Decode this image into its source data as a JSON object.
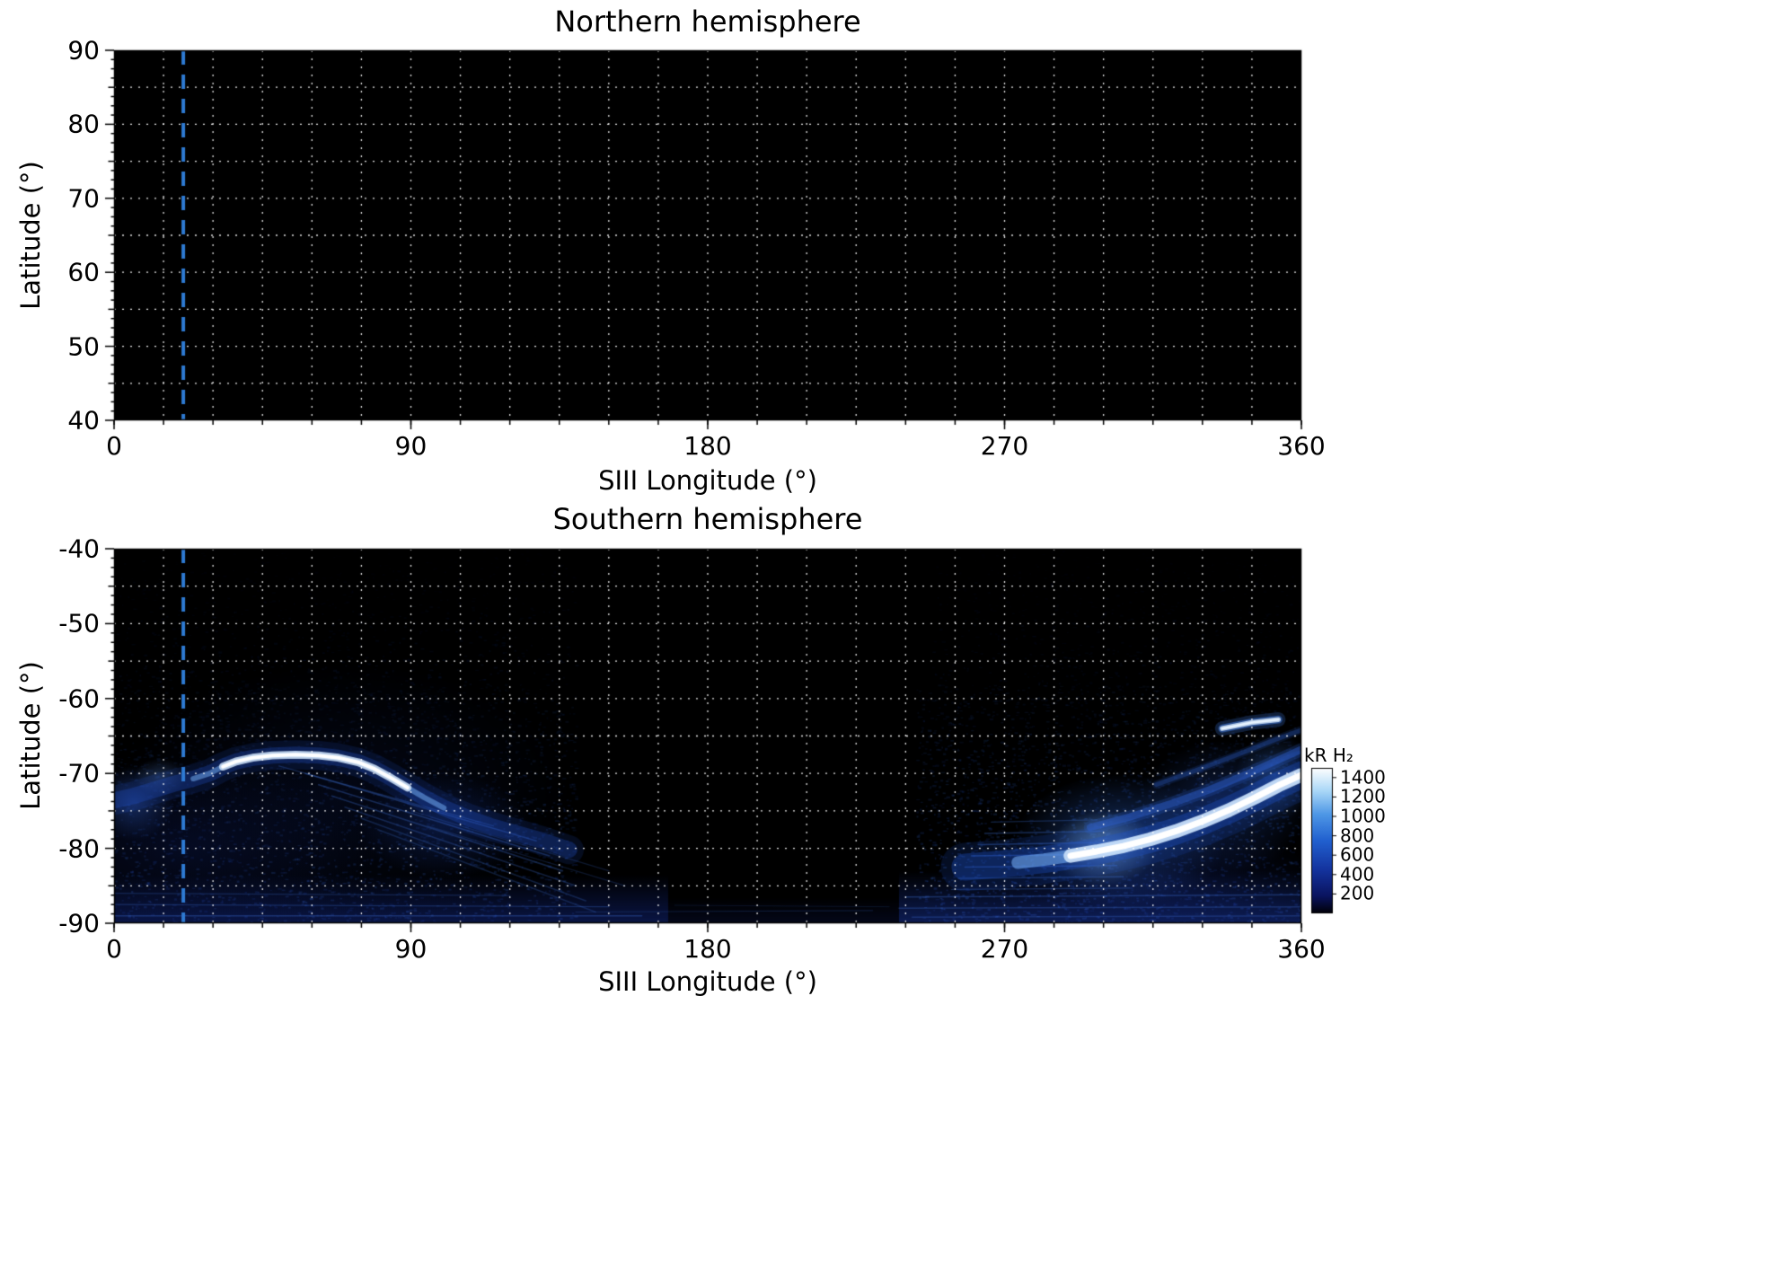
{
  "colorbar": {
    "label": "kR H₂",
    "ticks": [
      1400,
      1200,
      1000,
      800,
      600,
      400,
      200
    ],
    "range": [
      0,
      1500
    ],
    "colormap": [
      [
        0,
        "#000006"
      ],
      [
        0.12,
        "#0a1460"
      ],
      [
        0.3,
        "#14339e"
      ],
      [
        0.5,
        "#2160cf"
      ],
      [
        0.68,
        "#4e97e6"
      ],
      [
        0.84,
        "#a9d7f7"
      ],
      [
        1,
        "#ffffff"
      ]
    ]
  },
  "chart_data": [
    {
      "type": "heatmap",
      "title": "Northern hemisphere",
      "xlabel": "SIII Longitude (°)",
      "ylabel": "Latitude (°)",
      "xlim": [
        0,
        360
      ],
      "ylim": [
        40,
        90
      ],
      "xticks": [
        0,
        90,
        180,
        270,
        360
      ],
      "yticks": [
        90,
        80,
        70,
        60,
        50,
        40
      ],
      "grid": {
        "lon_step": 15,
        "lat_step": 5,
        "style": "white dotted"
      },
      "background": "#000000",
      "reference_line": {
        "lon": 21,
        "color": "#2e7ad2",
        "style": "dashed"
      },
      "emission_summary": "No auroral emission visible; entire map at minimum of color scale (black)"
    },
    {
      "type": "heatmap",
      "title": "Southern hemisphere",
      "xlabel": "SIII Longitude (°)",
      "ylabel": "Latitude (°)",
      "xlim": [
        0,
        360
      ],
      "ylim": [
        -90,
        -40
      ],
      "xticks": [
        0,
        90,
        180,
        270,
        360
      ],
      "yticks": [
        -40,
        -50,
        -60,
        -70,
        -80,
        -90
      ],
      "grid": {
        "lon_step": 15,
        "lat_step": 5,
        "style": "white dotted"
      },
      "background": "#000000",
      "reference_line": {
        "lon": 21,
        "color": "#2e7ad2",
        "style": "dashed"
      },
      "emission_summary": "Bright auroral main oval: white arc near lat -68° over lon 35-90° descending to -80° by lon 135°; dark gap lon ~140-250°; very bright white arc rising from (290°,-81°) to (360°,-70°) with peak ~1400 kR near lon 300-330°; diffuse blue emission and streaks toward lat -90° on both sides",
      "features": {
        "noise_regions": [
          {
            "lon": [
              0,
              140
            ],
            "lat": [
              -90,
              -58
            ],
            "count": 2600,
            "colors": [
              "#1c3fa0",
              "#2a58c8",
              "#3a73de"
            ],
            "alpha": 0.22
          },
          {
            "lon": [
              0,
              140
            ],
            "lat": [
              -58,
              -40
            ],
            "count": 700,
            "colors": [
              "#16307e",
              "#1c3fa0"
            ],
            "alpha": 0.1
          },
          {
            "lon": [
              243,
              360
            ],
            "lat": [
              -90,
              -58
            ],
            "count": 2600,
            "colors": [
              "#1c3fa0",
              "#2a58c8",
              "#3a73de"
            ],
            "alpha": 0.26
          },
          {
            "lon": [
              248,
              360
            ],
            "lat": [
              -58,
              -40
            ],
            "count": 650,
            "colors": [
              "#16307e",
              "#1c3fa0"
            ],
            "alpha": 0.09
          }
        ],
        "blobs": [
          {
            "lon": 70,
            "lat": -73,
            "rlon": 70,
            "rlat": 18,
            "color": "#0f2264",
            "alpha": 0.22
          },
          {
            "lon": 6,
            "lat": -74,
            "rlon": 12,
            "rlat": 5,
            "color": "#3468d8",
            "alpha": 0.4
          },
          {
            "lon": 14,
            "lat": -70.5,
            "rlon": 8,
            "rlat": 2.5,
            "color": "#5d92e8",
            "alpha": 0.3
          },
          {
            "lon": 100,
            "lat": -77,
            "rlon": 26,
            "rlat": 7,
            "color": "#1c43ae",
            "alpha": 0.3
          },
          {
            "lon": 20,
            "lat": -80,
            "rlon": 60,
            "rlat": 12,
            "color": "#13287e",
            "alpha": 0.25
          },
          {
            "lon": 305,
            "lat": -79,
            "rlon": 32,
            "rlat": 9,
            "color": "#2f6ade",
            "alpha": 0.45
          },
          {
            "lon": 300,
            "lat": -80,
            "rlon": 16,
            "rlat": 5,
            "color": "#9cd0f6",
            "alpha": 0.5
          },
          {
            "lon": 336,
            "lat": -74.5,
            "rlon": 26,
            "rlat": 9,
            "color": "#2a5cd0",
            "alpha": 0.32
          },
          {
            "lon": 352,
            "lat": -70.5,
            "rlon": 12,
            "rlat": 6,
            "color": "#3f7ce4",
            "alpha": 0.38
          },
          {
            "lon": 320,
            "lat": -85,
            "rlon": 50,
            "rlat": 8,
            "color": "#13287e",
            "alpha": 0.3
          }
        ],
        "arcs": [
          {
            "points": [
              [
                0,
                -73.6
              ],
              [
                6,
                -73
              ],
              [
                12,
                -72.2
              ],
              [
                18,
                -71.4
              ],
              [
                24,
                -70.7
              ],
              [
                29,
                -70
              ],
              [
                33,
                -69.1
              ],
              [
                37,
                -68.4
              ],
              [
                42,
                -67.9
              ],
              [
                48,
                -67.6
              ],
              [
                55,
                -67.5
              ],
              [
                62,
                -67.6
              ],
              [
                68,
                -67.9
              ],
              [
                74,
                -68.5
              ],
              [
                79,
                -69.4
              ],
              [
                84,
                -70.6
              ],
              [
                89,
                -71.9
              ],
              [
                94,
                -73.2
              ],
              [
                100,
                -74.6
              ],
              [
                107,
                -75.9
              ],
              [
                114,
                -77
              ],
              [
                122,
                -78
              ],
              [
                130,
                -79
              ],
              [
                138,
                -80.2
              ]
            ],
            "glow_color": "#2050c8",
            "glow_width": 18,
            "glow_alpha": 0.3,
            "mid_color": "#6fa8ef",
            "mid_from": 20,
            "mid_to": 105,
            "mid_width": 6,
            "mid_alpha": 0.55,
            "core_color": "#ffffff",
            "core_from": 33,
            "core_to": 90,
            "core_width": 4
          },
          {
            "points": [
              [
                258,
                -82.5
              ],
              [
                266,
                -82.2
              ],
              [
                274,
                -81.9
              ],
              [
                282,
                -81.5
              ],
              [
                290,
                -81
              ],
              [
                298,
                -80.4
              ],
              [
                306,
                -79.7
              ],
              [
                314,
                -78.8
              ],
              [
                322,
                -77.7
              ],
              [
                330,
                -76.4
              ],
              [
                338,
                -74.9
              ],
              [
                346,
                -73.2
              ],
              [
                353,
                -71.6
              ],
              [
                360,
                -70.2
              ]
            ],
            "glow_color": "#1e4fc8",
            "glow_width": 30,
            "glow_alpha": 0.35,
            "mid_color": "#6fa8ef",
            "mid_from": 268,
            "mid_to": 360,
            "mid_width": 14,
            "mid_alpha": 0.6,
            "core_color": "#ffffff",
            "core_from": 288,
            "core_to": 360,
            "core_width": 7
          },
          {
            "points": [
              [
                296,
                -77.2
              ],
              [
                308,
                -75.8
              ],
              [
                320,
                -74.1
              ],
              [
                332,
                -72.2
              ],
              [
                344,
                -70
              ],
              [
                356,
                -67.6
              ],
              [
                360,
                -66.8
              ]
            ],
            "glow_color": "#2e62d4",
            "glow_width": 8,
            "glow_alpha": 0.45
          },
          {
            "points": [
              [
                316,
                -71.5
              ],
              [
                328,
                -69.6
              ],
              [
                340,
                -67.6
              ],
              [
                352,
                -65.5
              ],
              [
                360,
                -64.2
              ]
            ],
            "glow_color": "#2e62d4",
            "glow_width": 5,
            "glow_alpha": 0.3
          },
          {
            "points": [
              [
                336,
                -64
              ],
              [
                345,
                -63.2
              ],
              [
                353,
                -62.8
              ]
            ],
            "glow_color": "#3f7ce4",
            "glow_width": 9,
            "glow_alpha": 0.5,
            "core_color": "#e8f4ff",
            "core_from": 336,
            "core_to": 353,
            "core_width": 2.5
          }
        ],
        "streaks": [
          [
            58,
            -70,
            128,
            -79,
            1.6,
            0.35
          ],
          [
            62,
            -71.5,
            132,
            -81,
            1.6,
            0.33
          ],
          [
            66,
            -73,
            136,
            -83,
            1.6,
            0.3
          ],
          [
            70,
            -74.5,
            140,
            -85,
            1.6,
            0.28
          ],
          [
            75,
            -76,
            143,
            -87,
            1.6,
            0.26
          ],
          [
            80,
            -77.5,
            146,
            -88.5,
            1.6,
            0.24
          ],
          [
            50,
            -69,
            115,
            -77,
            1.4,
            0.3
          ],
          [
            90,
            -75,
            150,
            -83,
            1.3,
            0.22
          ],
          [
            95,
            -77,
            155,
            -85,
            1.3,
            0.2
          ],
          [
            266,
            -76.5,
            298,
            -76.2,
            1.4,
            0.3
          ],
          [
            264,
            -78,
            300,
            -77.7,
            1.5,
            0.35
          ],
          [
            262,
            -79.5,
            300,
            -79.2,
            1.6,
            0.4
          ],
          [
            260,
            -81,
            302,
            -80.8,
            1.6,
            0.45
          ],
          [
            258,
            -82.5,
            304,
            -82.3,
            1.5,
            0.4
          ],
          [
            256,
            -84,
            306,
            -83.8,
            1.4,
            0.35
          ],
          [
            254,
            -85.5,
            308,
            -85.3,
            1.3,
            0.3
          ],
          [
            240,
            -86.5,
            360,
            -86.2,
            1.5,
            0.35
          ],
          [
            238,
            -88,
            360,
            -87.8,
            1.5,
            0.3
          ],
          [
            242,
            -89.2,
            360,
            -89,
            1.5,
            0.28
          ],
          [
            0,
            -86,
            120,
            -86.3,
            1.4,
            0.25
          ],
          [
            0,
            -87.5,
            150,
            -87.8,
            1.4,
            0.3
          ],
          [
            0,
            -89,
            160,
            -89,
            1.5,
            0.35
          ],
          [
            140,
            -88.5,
            230,
            -88.3,
            1.2,
            0.2
          ],
          [
            170,
            -87.6,
            235,
            -87.8,
            1.0,
            0.15
          ]
        ],
        "bands": [
          {
            "lon": [
              0,
              168
            ],
            "lat_from": -83.5,
            "lat_to": -90,
            "color": "#16309a",
            "alpha": 0.45
          },
          {
            "lon": [
              168,
              238
            ],
            "lat_from": -86.5,
            "lat_to": -90,
            "color": "#101f66",
            "alpha": 0.25
          },
          {
            "lon": [
              238,
              360
            ],
            "lat_from": -83,
            "lat_to": -90,
            "color": "#1a39a8",
            "alpha": 0.5
          }
        ]
      }
    }
  ]
}
